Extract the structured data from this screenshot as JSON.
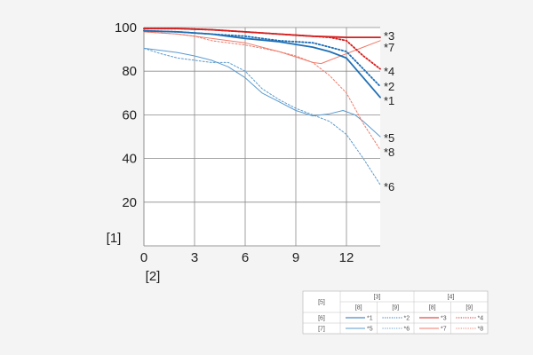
{
  "chart_data": {
    "type": "line",
    "xlabel": "[2]",
    "ylabel": "[1]",
    "xlim": [
      0,
      14
    ],
    "ylim": [
      0,
      100
    ],
    "x_ticks": [
      "0",
      "3",
      "6",
      "9",
      "12"
    ],
    "y_ticks": [
      "20",
      "40",
      "60",
      "80",
      "100"
    ],
    "grid": true,
    "series": [
      {
        "name": "*1",
        "color": "#1f6fb5",
        "style": "solid",
        "width": 1.8,
        "x": [
          0,
          2,
          4,
          6,
          8,
          10,
          11,
          12,
          13,
          14
        ],
        "y": [
          98.5,
          98,
          97,
          95,
          93.5,
          91,
          89,
          86,
          77,
          68
        ]
      },
      {
        "name": "*2",
        "color": "#1f6fb5",
        "style": "dotted",
        "width": 1.8,
        "x": [
          0,
          2,
          4,
          6,
          8,
          10,
          11,
          12,
          13,
          14
        ],
        "y": [
          98.5,
          98,
          97,
          96,
          94,
          93,
          91,
          89,
          81,
          73
        ]
      },
      {
        "name": "*3",
        "color": "#d42020",
        "style": "solid",
        "width": 1.8,
        "x": [
          0,
          2,
          4,
          6,
          8,
          10,
          12,
          14
        ],
        "y": [
          99.5,
          99.5,
          99,
          98,
          97,
          96,
          95.5,
          95.5
        ]
      },
      {
        "name": "*4",
        "color": "#d42020",
        "style": "dotted",
        "width": 1.8,
        "x": [
          0,
          2,
          4,
          6,
          8,
          10,
          11,
          12,
          13,
          14
        ],
        "y": [
          99.5,
          99.5,
          99,
          98,
          97,
          96,
          95.5,
          94,
          87,
          81
        ]
      },
      {
        "name": "*5",
        "color": "#5b9bcf",
        "style": "solid",
        "width": 1,
        "x": [
          0,
          1,
          2,
          3,
          4,
          5,
          6,
          7,
          8,
          9,
          10,
          11,
          11.8,
          12.5,
          13,
          14
        ],
        "y": [
          90.5,
          89.5,
          88.5,
          87,
          85,
          82,
          77,
          70,
          66,
          62,
          59.5,
          60.5,
          62,
          60,
          57,
          50
        ]
      },
      {
        "name": "*6",
        "color": "#5b9bcf",
        "style": "dotted",
        "width": 1,
        "x": [
          0,
          1,
          2,
          3,
          4,
          5,
          6,
          7,
          8,
          9,
          10,
          11,
          12,
          13,
          14
        ],
        "y": [
          90.5,
          88,
          86,
          85,
          84,
          84,
          80,
          72,
          67,
          63,
          60,
          57,
          51,
          40,
          28
        ]
      },
      {
        "name": "*7",
        "color": "#f07a6a",
        "style": "solid",
        "width": 1,
        "x": [
          0,
          2,
          4,
          6,
          8,
          9,
          10,
          10.5,
          11,
          12,
          13,
          14
        ],
        "y": [
          98,
          97,
          95,
          93,
          89,
          86.5,
          84,
          83.5,
          85,
          88,
          91,
          94
        ]
      },
      {
        "name": "*8",
        "color": "#f07a6a",
        "style": "dotted",
        "width": 1,
        "x": [
          0,
          2,
          3,
          4,
          6,
          8,
          9,
          10,
          11,
          12,
          13,
          14
        ],
        "y": [
          98,
          97,
          96,
          94,
          92,
          89,
          87,
          84,
          78,
          70,
          56,
          44
        ]
      }
    ],
    "end_labels": [
      "*3",
      "*7",
      "*4",
      "*2",
      "*1",
      "*5",
      "*8",
      "*6"
    ]
  },
  "legend": {
    "corner": "[5]",
    "group_headers": [
      "[3]",
      "[4]"
    ],
    "sub_headers": [
      "[8]",
      "[9]",
      "[8]",
      "[9]"
    ],
    "row_labels": [
      "[6]",
      "[7]"
    ],
    "rows": [
      [
        "*1",
        "*2",
        "*3",
        "*4"
      ],
      [
        "*5",
        "*6",
        "*7",
        "*8"
      ]
    ]
  }
}
